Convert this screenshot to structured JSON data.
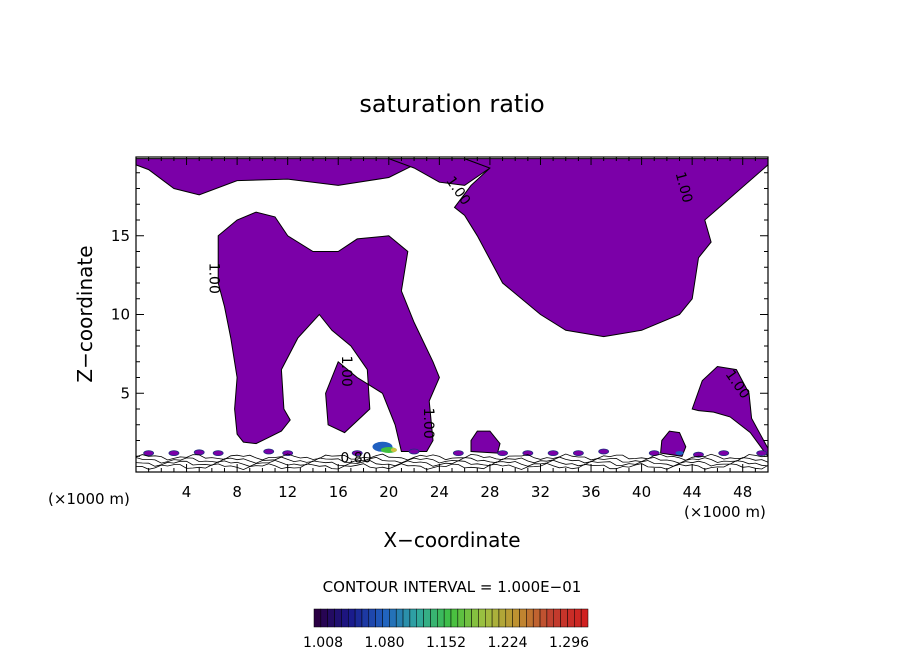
{
  "chart_data": {
    "type": "contour",
    "title": "saturation ratio",
    "xlabel": "X−coordinate",
    "ylabel": "Z−coordinate",
    "x_unit_left": "(×1000 m)",
    "x_unit_right": "(×1000 m)",
    "xlim": [
      0,
      50
    ],
    "ylim": [
      0,
      20
    ],
    "x_ticks": [
      4,
      8,
      12,
      16,
      20,
      24,
      28,
      32,
      36,
      40,
      44,
      48
    ],
    "y_ticks": [
      5,
      10,
      15
    ],
    "contour_interval_text": "CONTOUR INTERVAL = 1.000E−01",
    "colorbar": {
      "labels": [
        "1.008",
        "1.080",
        "1.152",
        "1.224",
        "1.296"
      ],
      "colors": [
        "#2a0044",
        "#1a1a8c",
        "#2060c0",
        "#30a8a0",
        "#40c040",
        "#a0c040",
        "#c09030",
        "#c04030",
        "#d02020"
      ]
    },
    "contour_labels": [
      {
        "text": "1.00",
        "x": 5.8,
        "y": 12.3,
        "rotate": 90
      },
      {
        "text": "1.00",
        "x": 25.2,
        "y": 17.7,
        "rotate": 55
      },
      {
        "text": "1.00",
        "x": 43.0,
        "y": 18.0,
        "rotate": 75
      },
      {
        "text": "1.00",
        "x": 16.3,
        "y": 6.4,
        "rotate": 90
      },
      {
        "text": "1.00",
        "x": 22.8,
        "y": 3.1,
        "rotate": 90
      },
      {
        "text": "1.00",
        "x": 47.3,
        "y": 5.4,
        "rotate": 55
      },
      {
        "text": "0.80",
        "x": 17.4,
        "y": 0.6,
        "rotate": 0
      }
    ],
    "fill_color": "#7b00a8",
    "regions": [
      {
        "name": "top-left-cloud",
        "points": [
          [
            0,
            19.9
          ],
          [
            6,
            19.9
          ],
          [
            14,
            19.9
          ],
          [
            20,
            19.9
          ],
          [
            22,
            19.5
          ],
          [
            20,
            18.7
          ],
          [
            16,
            18.2
          ],
          [
            12,
            18.6
          ],
          [
            8,
            18.5
          ],
          [
            5,
            17.6
          ],
          [
            3,
            18
          ],
          [
            1,
            19.2
          ],
          [
            0,
            19.5
          ]
        ]
      },
      {
        "name": "top-center-cloud",
        "points": [
          [
            20,
            19.9
          ],
          [
            26,
            19.9
          ],
          [
            28,
            19.3
          ],
          [
            26,
            18.2
          ],
          [
            24,
            18.4
          ],
          [
            22,
            19.3
          ]
        ]
      },
      {
        "name": "top-right-cloud",
        "points": [
          [
            26,
            19.9
          ],
          [
            50,
            19.9
          ],
          [
            50,
            19.5
          ],
          [
            45,
            16
          ],
          [
            45.5,
            14.6
          ],
          [
            44.5,
            13.6
          ],
          [
            44,
            11
          ],
          [
            43,
            10
          ],
          [
            40,
            9
          ],
          [
            37,
            8.6
          ],
          [
            34,
            9
          ],
          [
            32,
            10
          ],
          [
            29,
            12
          ],
          [
            27,
            15
          ],
          [
            26,
            16.3
          ],
          [
            25.2,
            16.8
          ],
          [
            26.5,
            18.2
          ],
          [
            28,
            19.3
          ]
        ]
      },
      {
        "name": "mid-left-cloud",
        "points": [
          [
            6.5,
            15
          ],
          [
            8,
            16
          ],
          [
            9.5,
            16.5
          ],
          [
            11,
            16.2
          ],
          [
            12,
            15
          ],
          [
            14,
            14
          ],
          [
            16,
            14
          ],
          [
            17.5,
            14.8
          ],
          [
            20,
            15
          ],
          [
            21.5,
            14
          ],
          [
            21,
            11.5
          ],
          [
            22,
            9.5
          ],
          [
            23.5,
            7
          ],
          [
            24,
            6
          ],
          [
            23.2,
            4.5
          ],
          [
            23.5,
            2
          ],
          [
            23,
            1.3
          ],
          [
            21,
            1.3
          ],
          [
            20.5,
            3
          ],
          [
            19.5,
            5
          ],
          [
            17.5,
            6
          ],
          [
            16,
            7
          ],
          [
            15,
            5
          ],
          [
            15.2,
            3
          ],
          [
            16.5,
            2.5
          ],
          [
            18.5,
            4
          ],
          [
            18.3,
            6.5
          ],
          [
            17,
            8
          ],
          [
            15.5,
            9
          ],
          [
            14.5,
            10
          ],
          [
            12.8,
            8.5
          ],
          [
            11.5,
            6.5
          ],
          [
            11.7,
            4
          ],
          [
            12.2,
            3.3
          ],
          [
            11.5,
            2.6
          ],
          [
            10.5,
            2.2
          ],
          [
            9.5,
            1.8
          ],
          [
            8.5,
            1.9
          ],
          [
            8,
            2.4
          ],
          [
            7.8,
            4
          ],
          [
            8,
            6
          ],
          [
            7.5,
            8.5
          ],
          [
            7,
            10.5
          ],
          [
            6.5,
            12
          ]
        ]
      },
      {
        "name": "right-small-cloud",
        "points": [
          [
            44,
            4
          ],
          [
            44.8,
            5.8
          ],
          [
            46,
            6.7
          ],
          [
            47.5,
            6.5
          ],
          [
            48.5,
            5
          ],
          [
            48.7,
            3.4
          ],
          [
            50,
            1.5
          ],
          [
            50,
            1
          ],
          [
            49.7,
            1.3
          ],
          [
            48.6,
            2.5
          ],
          [
            47,
            3.5
          ],
          [
            45.7,
            3.8
          ],
          [
            44.5,
            3.9
          ]
        ]
      },
      {
        "name": "cell-27-28",
        "points": [
          [
            26.5,
            1.3
          ],
          [
            26.5,
            2
          ],
          [
            27,
            2.6
          ],
          [
            28,
            2.6
          ],
          [
            28.8,
            1.8
          ],
          [
            28.6,
            1.2
          ]
        ]
      },
      {
        "name": "cell-42-43",
        "points": [
          [
            41.5,
            1.2
          ],
          [
            41.6,
            2
          ],
          [
            42.2,
            2.6
          ],
          [
            43,
            2.5
          ],
          [
            43.5,
            1.6
          ],
          [
            43.2,
            1
          ]
        ]
      }
    ]
  }
}
